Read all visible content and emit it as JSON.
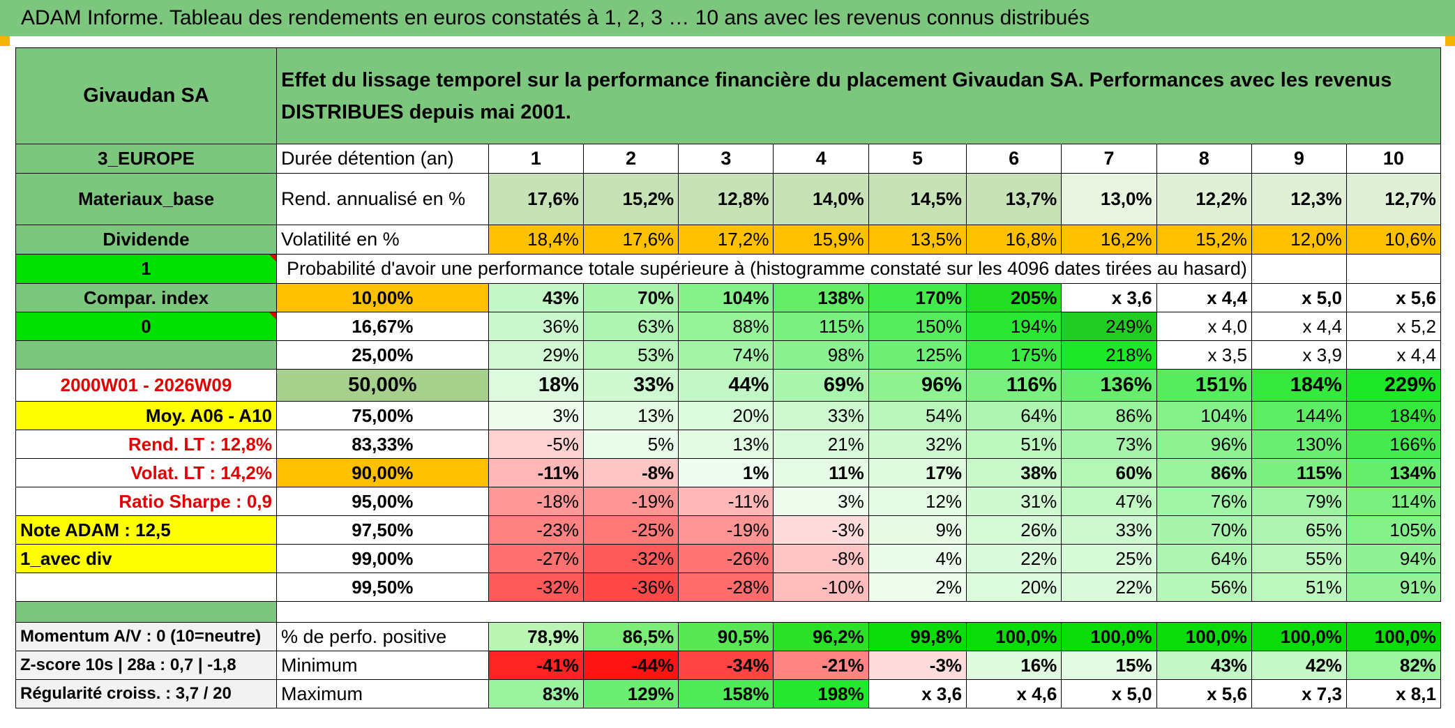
{
  "title": "ADAM Informe. Tableau des rendements en euros constatés à 1, 2, 3 … 10 ans avec les revenus connus distribués",
  "side": {
    "company": "Givaudan SA",
    "region": "3_EUROPE",
    "sector": "Materiaux_base",
    "type": "Dividende",
    "flag1": "1",
    "compar": "Compar. index",
    "flag0": "0",
    "period": "2000W01 - 2026W09",
    "moy": "Moy. A06 - A10",
    "rend": "Rend. LT :   12,8%",
    "volat": "Volat. LT :   14,2%",
    "sharpe": "Ratio Sharpe :    0,9",
    "note": "Note ADAM : 12,5",
    "div": "1_avec div",
    "momentum": "Momentum A/V : 0 (10=neutre)",
    "zscore": "Z-score 10s | 28a : 0,7 | -1,8",
    "regularite": "Régularité croiss. : 3,7 / 20"
  },
  "header_text": "Effet du lissage temporel sur la performance financière du placement Givaudan SA. Performances avec les revenus DISTRIBUES depuis mai 2001.",
  "labels": {
    "duree": "Durée détention (an)",
    "rend": "Rend. annualisé en %",
    "volat": "Volatilité en %",
    "proba": "Probabilité d'avoir une performance totale supérieure à (histogramme constaté sur les 4096 dates tirées au hasard)",
    "pos": "% de perfo. positive",
    "min": "Minimum",
    "max": "Maximum"
  },
  "years": [
    "1",
    "2",
    "3",
    "4",
    "5",
    "6",
    "7",
    "8",
    "9",
    "10"
  ],
  "rend": [
    "17,6%",
    "15,2%",
    "12,8%",
    "14,0%",
    "14,5%",
    "13,7%",
    "13,0%",
    "12,2%",
    "12,3%",
    "12,7%"
  ],
  "volat": [
    "18,4%",
    "17,6%",
    "17,2%",
    "15,9%",
    "13,5%",
    "16,8%",
    "16,2%",
    "15,2%",
    "12,0%",
    "10,6%"
  ],
  "proba_rows": [
    {
      "p": "10,00%",
      "vals": [
        "43%",
        "70%",
        "104%",
        "138%",
        "170%",
        "205%",
        "x 3,6",
        "x 4,4",
        "x 5,0",
        "x 5,6"
      ]
    },
    {
      "p": "16,67%",
      "vals": [
        "36%",
        "63%",
        "88%",
        "115%",
        "150%",
        "194%",
        "249%",
        "x 4,0",
        "x 4,4",
        "x 5,2"
      ]
    },
    {
      "p": "25,00%",
      "vals": [
        "29%",
        "53%",
        "74%",
        "98%",
        "125%",
        "175%",
        "218%",
        "x 3,5",
        "x 3,9",
        "x 4,4"
      ]
    },
    {
      "p": "50,00%",
      "vals": [
        "18%",
        "33%",
        "44%",
        "69%",
        "96%",
        "116%",
        "136%",
        "151%",
        "184%",
        "229%"
      ]
    },
    {
      "p": "75,00%",
      "vals": [
        "3%",
        "13%",
        "20%",
        "33%",
        "54%",
        "64%",
        "86%",
        "104%",
        "144%",
        "184%"
      ]
    },
    {
      "p": "83,33%",
      "vals": [
        "-5%",
        "5%",
        "13%",
        "21%",
        "32%",
        "51%",
        "73%",
        "96%",
        "130%",
        "166%"
      ]
    },
    {
      "p": "90,00%",
      "vals": [
        "-11%",
        "-8%",
        "1%",
        "11%",
        "17%",
        "38%",
        "60%",
        "86%",
        "115%",
        "134%"
      ]
    },
    {
      "p": "95,00%",
      "vals": [
        "-18%",
        "-19%",
        "-11%",
        "3%",
        "12%",
        "31%",
        "47%",
        "76%",
        "79%",
        "114%"
      ]
    },
    {
      "p": "97,50%",
      "vals": [
        "-23%",
        "-25%",
        "-19%",
        "-3%",
        "9%",
        "26%",
        "33%",
        "70%",
        "65%",
        "105%"
      ]
    },
    {
      "p": "99,00%",
      "vals": [
        "-27%",
        "-32%",
        "-26%",
        "-8%",
        "4%",
        "22%",
        "25%",
        "64%",
        "55%",
        "94%"
      ]
    },
    {
      "p": "99,50%",
      "vals": [
        "-32%",
        "-36%",
        "-28%",
        "-10%",
        "2%",
        "20%",
        "22%",
        "56%",
        "51%",
        "91%"
      ]
    }
  ],
  "pos": [
    "78,9%",
    "86,5%",
    "90,5%",
    "96,2%",
    "99,8%",
    "100,0%",
    "100,0%",
    "100,0%",
    "100,0%",
    "100,0%"
  ],
  "min": [
    "-41%",
    "-44%",
    "-34%",
    "-21%",
    "-3%",
    "16%",
    "15%",
    "43%",
    "42%",
    "82%"
  ],
  "max": [
    "83%",
    "129%",
    "158%",
    "198%",
    "x 3,6",
    "x 4,6",
    "x 5,0",
    "x 5,6",
    "x 7,3",
    "x 8,1"
  ],
  "colors": {
    "header_green": "#7dc67d",
    "bright_green": "#00e000",
    "orange": "#ffc000",
    "yellow": "#ffff00",
    "red_text": "#e00000"
  }
}
